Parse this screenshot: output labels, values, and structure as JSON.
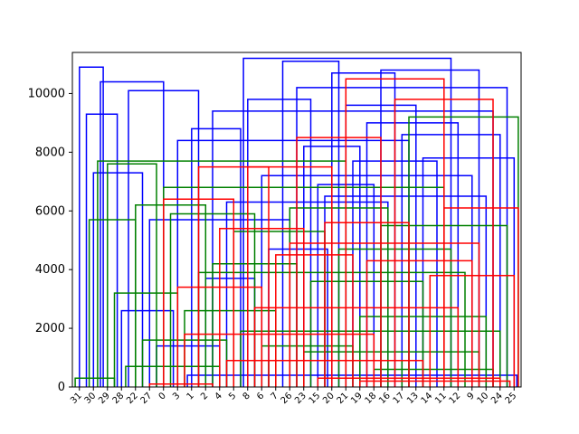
{
  "chart_data": {
    "type": "dendrogram",
    "title": "",
    "xlabel": "",
    "ylabel": "",
    "ylim": [
      0,
      11400
    ],
    "y_ticks": [
      0,
      2000,
      4000,
      6000,
      8000,
      10000
    ],
    "y_tick_labels": [
      "0",
      "2000",
      "4000",
      "6000",
      "8000",
      "10000"
    ],
    "leaf_labels": [
      "31",
      "30",
      "29",
      "28",
      "22",
      "27",
      "0",
      "3",
      "1",
      "2",
      "4",
      "5",
      "8",
      "6",
      "7",
      "26",
      "23",
      "15",
      "20",
      "21",
      "19",
      "18",
      "16",
      "17",
      "13",
      "14",
      "11",
      "12",
      "9",
      "10",
      "24",
      "25"
    ],
    "grid": false,
    "legend": "none",
    "colors": {
      "cluster_a": "#0000ff",
      "cluster_b": "#008000",
      "cluster_c": "#ff0000",
      "axes": "#000000"
    },
    "link_groups": [
      {
        "color": "#0000ff",
        "links": [
          {
            "x": [
              0.5,
              0.5,
              2.2,
              2.2
            ],
            "y": [
              0,
              10900,
              10900,
              0
            ]
          },
          {
            "x": [
              1.0,
              1.0,
              3.2,
              3.2
            ],
            "y": [
              0,
              9300,
              9300,
              0
            ]
          },
          {
            "x": [
              1.5,
              1.5,
              5.0,
              5.0
            ],
            "y": [
              0,
              7300,
              7300,
              0
            ]
          },
          {
            "x": [
              2.0,
              2.0,
              6.5,
              6.5
            ],
            "y": [
              0,
              10400,
              10400,
              0
            ]
          },
          {
            "x": [
              3.5,
              3.5,
              7.2,
              7.2
            ],
            "y": [
              0,
              2600,
              2600,
              0
            ]
          },
          {
            "x": [
              4.0,
              4.0,
              9.0,
              9.0
            ],
            "y": [
              0,
              10100,
              10100,
              0
            ]
          },
          {
            "x": [
              6.0,
              6.0,
              10.5,
              10.5
            ],
            "y": [
              0,
              1400,
              1400,
              0
            ]
          },
          {
            "x": [
              8.5,
              8.5,
              12.0,
              12.0
            ],
            "y": [
              0,
              8800,
              8800,
              0
            ]
          },
          {
            "x": [
              9.5,
              9.5,
              13.0,
              13.0
            ],
            "y": [
              0,
              3700,
              3700,
              0
            ]
          },
          {
            "x": [
              12.5,
              12.5,
              17.0,
              17.0
            ],
            "y": [
              0,
              9800,
              9800,
              0
            ]
          },
          {
            "x": [
              14.0,
              14.0,
              18.2,
              18.2
            ],
            "y": [
              0,
              4700,
              4700,
              0
            ]
          },
          {
            "x": [
              15.0,
              15.0,
              19.0,
              19.0
            ],
            "y": [
              0,
              11100,
              11100,
              0
            ]
          },
          {
            "x": [
              16.5,
              16.5,
              20.5,
              20.5
            ],
            "y": [
              0,
              8200,
              8200,
              0
            ]
          },
          {
            "x": [
              17.5,
              17.5,
              21.5,
              21.5
            ],
            "y": [
              0,
              6900,
              6900,
              0
            ]
          },
          {
            "x": [
              18.5,
              18.5,
              23.0,
              23.0
            ],
            "y": [
              0,
              10700,
              10700,
              0
            ]
          },
          {
            "x": [
              19.5,
              19.5,
              24.5,
              24.5
            ],
            "y": [
              0,
              9600,
              9600,
              0
            ]
          },
          {
            "x": [
              20.0,
              20.0,
              26.0,
              26.0
            ],
            "y": [
              0,
              7700,
              7700,
              0
            ]
          },
          {
            "x": [
              21.0,
              21.0,
              27.5,
              27.5
            ],
            "y": [
              0,
              9000,
              9000,
              0
            ]
          },
          {
            "x": [
              22.0,
              22.0,
              29.0,
              29.0
            ],
            "y": [
              0,
              10800,
              10800,
              0
            ]
          },
          {
            "x": [
              23.5,
              23.5,
              30.5,
              30.5
            ],
            "y": [
              0,
              8600,
              8600,
              0
            ]
          },
          {
            "x": [
              25.0,
              25.0,
              31.5,
              31.5
            ],
            "y": [
              0,
              7800,
              7800,
              0
            ]
          },
          {
            "x": [
              11.0,
              11.0,
              22.5,
              22.5
            ],
            "y": [
              0,
              6300,
              6300,
              0
            ]
          },
          {
            "x": [
              13.5,
              13.5,
              28.5,
              28.5
            ],
            "y": [
              0,
              7200,
              7200,
              0
            ]
          },
          {
            "x": [
              7.5,
              7.5,
              24.0,
              24.0
            ],
            "y": [
              0,
              8400,
              8400,
              0
            ]
          },
          {
            "x": [
              10.0,
              10.0,
              30.0,
              30.0
            ],
            "y": [
              0,
              9400,
              9400,
              0
            ]
          },
          {
            "x": [
              16.0,
              16.0,
              31.0,
              31.0
            ],
            "y": [
              0,
              10200,
              10200,
              0
            ]
          },
          {
            "x": [
              5.5,
              5.5,
              15.5,
              15.5
            ],
            "y": [
              0,
              5700,
              5700,
              0
            ]
          },
          {
            "x": [
              18.0,
              18.0,
              29.5,
              29.5
            ],
            "y": [
              0,
              6500,
              6500,
              0
            ]
          },
          {
            "x": [
              12.2,
              12.2,
              27.0,
              27.0
            ],
            "y": [
              0,
              11200,
              11200,
              0
            ]
          },
          {
            "x": [
              8.2,
              8.2,
              31.7,
              31.7
            ],
            "y": [
              0,
              400,
              400,
              0
            ]
          }
        ]
      },
      {
        "color": "#008000",
        "links": [
          {
            "x": [
              0.2,
              0.2,
              3.0,
              3.0
            ],
            "y": [
              0,
              300,
              300,
              0
            ]
          },
          {
            "x": [
              1.2,
              1.2,
              4.5,
              4.5
            ],
            "y": [
              0,
              5700,
              5700,
              0
            ]
          },
          {
            "x": [
              2.5,
              2.5,
              6.0,
              6.0
            ],
            "y": [
              0,
              7600,
              7600,
              0
            ]
          },
          {
            "x": [
              3.0,
              3.0,
              7.5,
              7.5
            ],
            "y": [
              0,
              3200,
              3200,
              0
            ]
          },
          {
            "x": [
              4.5,
              4.5,
              9.5,
              9.5
            ],
            "y": [
              0,
              6200,
              6200,
              0
            ]
          },
          {
            "x": [
              5.0,
              5.0,
              11.0,
              11.0
            ],
            "y": [
              0,
              1600,
              1600,
              0
            ]
          },
          {
            "x": [
              7.0,
              7.0,
              13.0,
              13.0
            ],
            "y": [
              0,
              5900,
              5900,
              0
            ]
          },
          {
            "x": [
              8.0,
              8.0,
              14.5,
              14.5
            ],
            "y": [
              0,
              2600,
              2600,
              0
            ]
          },
          {
            "x": [
              10.0,
              10.0,
              16.0,
              16.0
            ],
            "y": [
              0,
              4200,
              4200,
              0
            ]
          },
          {
            "x": [
              11.5,
              11.5,
              18.0,
              18.0
            ],
            "y": [
              0,
              5300,
              5300,
              0
            ]
          },
          {
            "x": [
              13.5,
              13.5,
              20.0,
              20.0
            ],
            "y": [
              0,
              1400,
              1400,
              0
            ]
          },
          {
            "x": [
              15.5,
              15.5,
              22.5,
              22.5
            ],
            "y": [
              0,
              6100,
              6100,
              0
            ]
          },
          {
            "x": [
              17.0,
              17.0,
              25.0,
              25.0
            ],
            "y": [
              0,
              3600,
              3600,
              0
            ]
          },
          {
            "x": [
              19.0,
              19.0,
              27.0,
              27.0
            ],
            "y": [
              0,
              4700,
              4700,
              0
            ]
          },
          {
            "x": [
              20.5,
              20.5,
              29.5,
              29.5
            ],
            "y": [
              0,
              2400,
              2400,
              0
            ]
          },
          {
            "x": [
              22.0,
              22.0,
              31.0,
              31.0
            ],
            "y": [
              0,
              5500,
              5500,
              0
            ]
          },
          {
            "x": [
              24.0,
              24.0,
              31.8,
              31.8
            ],
            "y": [
              0,
              9200,
              9200,
              0
            ]
          },
          {
            "x": [
              1.8,
              1.8,
              19.5,
              19.5
            ],
            "y": [
              0,
              7700,
              7700,
              0
            ]
          },
          {
            "x": [
              6.5,
              6.5,
              26.5,
              26.5
            ],
            "y": [
              0,
              6800,
              6800,
              0
            ]
          },
          {
            "x": [
              9.0,
              9.0,
              28.0,
              28.0
            ],
            "y": [
              0,
              3900,
              3900,
              0
            ]
          },
          {
            "x": [
              12.0,
              12.0,
              30.5,
              30.5
            ],
            "y": [
              0,
              1900,
              1900,
              0
            ]
          },
          {
            "x": [
              14.0,
              14.0,
              23.5,
              23.5
            ],
            "y": [
              0,
              900,
              900,
              0
            ]
          },
          {
            "x": [
              3.8,
              3.8,
              10.5,
              10.5
            ],
            "y": [
              0,
              700,
              700,
              0
            ]
          },
          {
            "x": [
              16.5,
              16.5,
              29.0,
              29.0
            ],
            "y": [
              0,
              1200,
              1200,
              0
            ]
          },
          {
            "x": [
              21.5,
              21.5,
              30.0,
              30.0
            ],
            "y": [
              0,
              600,
              600,
              0
            ]
          }
        ]
      },
      {
        "color": "#ff0000",
        "links": [
          {
            "x": [
              6.5,
              6.5,
              11.5,
              11.5
            ],
            "y": [
              0,
              6400,
              6400,
              0
            ]
          },
          {
            "x": [
              7.5,
              7.5,
              13.5,
              13.5
            ],
            "y": [
              0,
              3400,
              3400,
              0
            ]
          },
          {
            "x": [
              9.0,
              9.0,
              14.0,
              14.0
            ],
            "y": [
              0,
              7500,
              7500,
              0
            ]
          },
          {
            "x": [
              10.5,
              10.5,
              16.5,
              16.5
            ],
            "y": [
              0,
              5400,
              5400,
              0
            ]
          },
          {
            "x": [
              12.5,
              12.5,
              18.5,
              18.5
            ],
            "y": [
              0,
              7500,
              7500,
              0
            ]
          },
          {
            "x": [
              14.5,
              14.5,
              20.0,
              20.0
            ],
            "y": [
              0,
              4500,
              4500,
              0
            ]
          },
          {
            "x": [
              16.0,
              16.0,
              22.0,
              22.0
            ],
            "y": [
              0,
              8500,
              8500,
              0
            ]
          },
          {
            "x": [
              18.0,
              18.0,
              24.0,
              24.0
            ],
            "y": [
              0,
              5600,
              5600,
              0
            ]
          },
          {
            "x": [
              19.5,
              19.5,
              26.5,
              26.5
            ],
            "y": [
              0,
              10500,
              10500,
              0
            ]
          },
          {
            "x": [
              21.0,
              21.0,
              28.5,
              28.5
            ],
            "y": [
              0,
              4300,
              4300,
              0
            ]
          },
          {
            "x": [
              23.0,
              23.0,
              30.0,
              30.0
            ],
            "y": [
              0,
              9800,
              9800,
              0
            ]
          },
          {
            "x": [
              25.5,
              25.5,
              31.5,
              31.5
            ],
            "y": [
              0,
              3800,
              3800,
              0
            ]
          },
          {
            "x": [
              26.5,
              26.5,
              31.8,
              31.8
            ],
            "y": [
              0,
              6100,
              6100,
              0
            ]
          },
          {
            "x": [
              8.0,
              8.0,
              21.5,
              21.5
            ],
            "y": [
              0,
              1800,
              1800,
              0
            ]
          },
          {
            "x": [
              11.0,
              11.0,
              25.0,
              25.0
            ],
            "y": [
              0,
              900,
              900,
              0
            ]
          },
          {
            "x": [
              13.0,
              13.0,
              27.5,
              27.5
            ],
            "y": [
              0,
              2700,
              2700,
              0
            ]
          },
          {
            "x": [
              15.5,
              15.5,
              29.0,
              29.0
            ],
            "y": [
              0,
              4900,
              4900,
              0
            ]
          },
          {
            "x": [
              17.5,
              17.5,
              30.5,
              30.5
            ],
            "y": [
              0,
              300,
              300,
              0
            ]
          },
          {
            "x": [
              20.5,
              20.5,
              31.2,
              31.2
            ],
            "y": [
              0,
              200,
              200,
              0
            ]
          },
          {
            "x": [
              5.5,
              5.5,
              10.0,
              10.0
            ],
            "y": [
              0,
              100,
              100,
              0
            ]
          }
        ]
      }
    ]
  }
}
